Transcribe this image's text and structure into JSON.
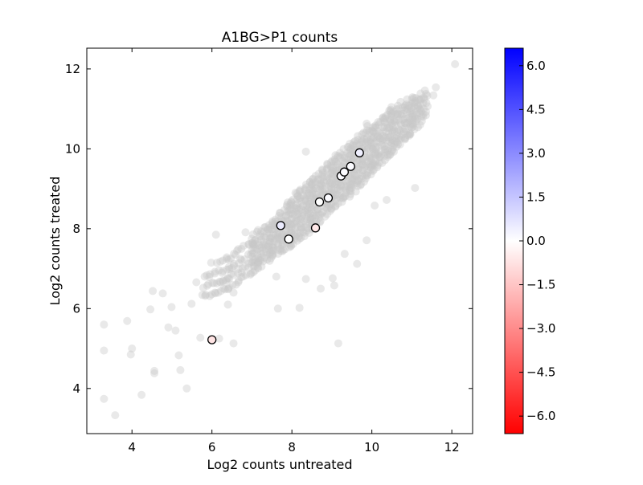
{
  "chart_data": {
    "type": "scatter",
    "title": "A1BG>P1 counts",
    "xlabel": "Log2 counts untreated",
    "ylabel": "Log2 counts treated",
    "xlim": [
      2.87,
      12.52
    ],
    "ylim": [
      2.87,
      12.52
    ],
    "xticks": [
      4,
      6,
      8,
      10,
      12
    ],
    "yticks": [
      4,
      6,
      8,
      10,
      12
    ],
    "grid": false,
    "background_color": "#c8c8c8",
    "background_band": [
      [
        5.8,
        6.3,
        6.9
      ],
      [
        6.4,
        6.5,
        7.4
      ],
      [
        7.0,
        6.9,
        7.8
      ],
      [
        7.5,
        7.3,
        8.2
      ],
      [
        8.0,
        7.6,
        8.8
      ],
      [
        8.5,
        8.0,
        9.3
      ],
      [
        9.0,
        8.5,
        9.8
      ],
      [
        9.5,
        8.9,
        10.2
      ],
      [
        10.0,
        9.4,
        10.6
      ],
      [
        10.5,
        9.9,
        11.0
      ],
      [
        11.0,
        10.4,
        11.3
      ],
      [
        11.4,
        10.9,
        11.5
      ]
    ],
    "background_points": [
      [
        12.08,
        12.12
      ],
      [
        11.6,
        11.54
      ],
      [
        11.54,
        11.34
      ],
      [
        3.3,
        5.6
      ],
      [
        3.3,
        4.95
      ],
      [
        3.3,
        3.74
      ],
      [
        3.58,
        3.33
      ],
      [
        3.88,
        5.69
      ],
      [
        4.0,
        5.0
      ],
      [
        3.97,
        4.85
      ],
      [
        4.24,
        3.84
      ],
      [
        4.52,
        6.44
      ],
      [
        4.46,
        5.98
      ],
      [
        4.56,
        4.44
      ],
      [
        4.56,
        4.38
      ],
      [
        4.77,
        6.38
      ],
      [
        4.91,
        5.53
      ],
      [
        4.99,
        6.04
      ],
      [
        5.09,
        5.45
      ],
      [
        5.17,
        4.83
      ],
      [
        5.37,
        4.0
      ],
      [
        5.21,
        4.46
      ],
      [
        5.49,
        6.12
      ],
      [
        5.61,
        6.66
      ],
      [
        5.71,
        5.27
      ],
      [
        5.83,
        6.32
      ],
      [
        6.18,
        5.25
      ],
      [
        6.54,
        5.13
      ],
      [
        6.1,
        7.85
      ],
      [
        5.98,
        7.15
      ],
      [
        6.28,
        6.7
      ],
      [
        6.74,
        6.9
      ],
      [
        6.54,
        6.4
      ],
      [
        6.4,
        6.1
      ],
      [
        6.84,
        7.91
      ],
      [
        7.04,
        7.61
      ],
      [
        7.19,
        7.21
      ],
      [
        7.65,
        6.0
      ],
      [
        7.61,
        6.8
      ],
      [
        8.19,
        6.02
      ],
      [
        8.35,
        6.74
      ],
      [
        8.72,
        6.5
      ],
      [
        9.02,
        6.76
      ],
      [
        9.16,
        5.13
      ],
      [
        9.32,
        7.37
      ],
      [
        9.06,
        6.58
      ],
      [
        9.63,
        7.12
      ],
      [
        10.07,
        8.58
      ],
      [
        10.37,
        8.72
      ],
      [
        11.08,
        9.02
      ],
      [
        9.87,
        7.71
      ],
      [
        8.35,
        9.93
      ],
      [
        9.87,
        10.63
      ],
      [
        10.47,
        10.98
      ]
    ],
    "highlighted_points": [
      {
        "x": 6.0,
        "y": 5.22,
        "value": -0.7
      },
      {
        "x": 7.72,
        "y": 8.08,
        "value": 0.5
      },
      {
        "x": 7.92,
        "y": 7.74,
        "value": 0.0
      },
      {
        "x": 8.59,
        "y": 8.02,
        "value": -0.6
      },
      {
        "x": 8.69,
        "y": 8.67,
        "value": 0.0
      },
      {
        "x": 8.91,
        "y": 8.77,
        "value": 0.1
      },
      {
        "x": 9.23,
        "y": 9.32,
        "value": 0.1
      },
      {
        "x": 9.31,
        "y": 9.42,
        "value": 0.1
      },
      {
        "x": 9.47,
        "y": 9.56,
        "value": 0.1
      },
      {
        "x": 9.69,
        "y": 9.9,
        "value": 0.4
      }
    ],
    "colorbar": {
      "colormap": "bwr_r",
      "range": [
        -6.6,
        6.6
      ],
      "ticks": [
        "6.0",
        "4.5",
        "3.0",
        "1.5",
        "0.0",
        "−1.5",
        "−3.0",
        "−4.5",
        "−6.0"
      ],
      "tick_values": [
        6.0,
        4.5,
        3.0,
        1.5,
        0.0,
        -1.5,
        -3.0,
        -4.5,
        -6.0
      ],
      "top_color": "#0000ff",
      "mid_color": "#ffffff",
      "bottom_color": "#ff0000"
    }
  }
}
